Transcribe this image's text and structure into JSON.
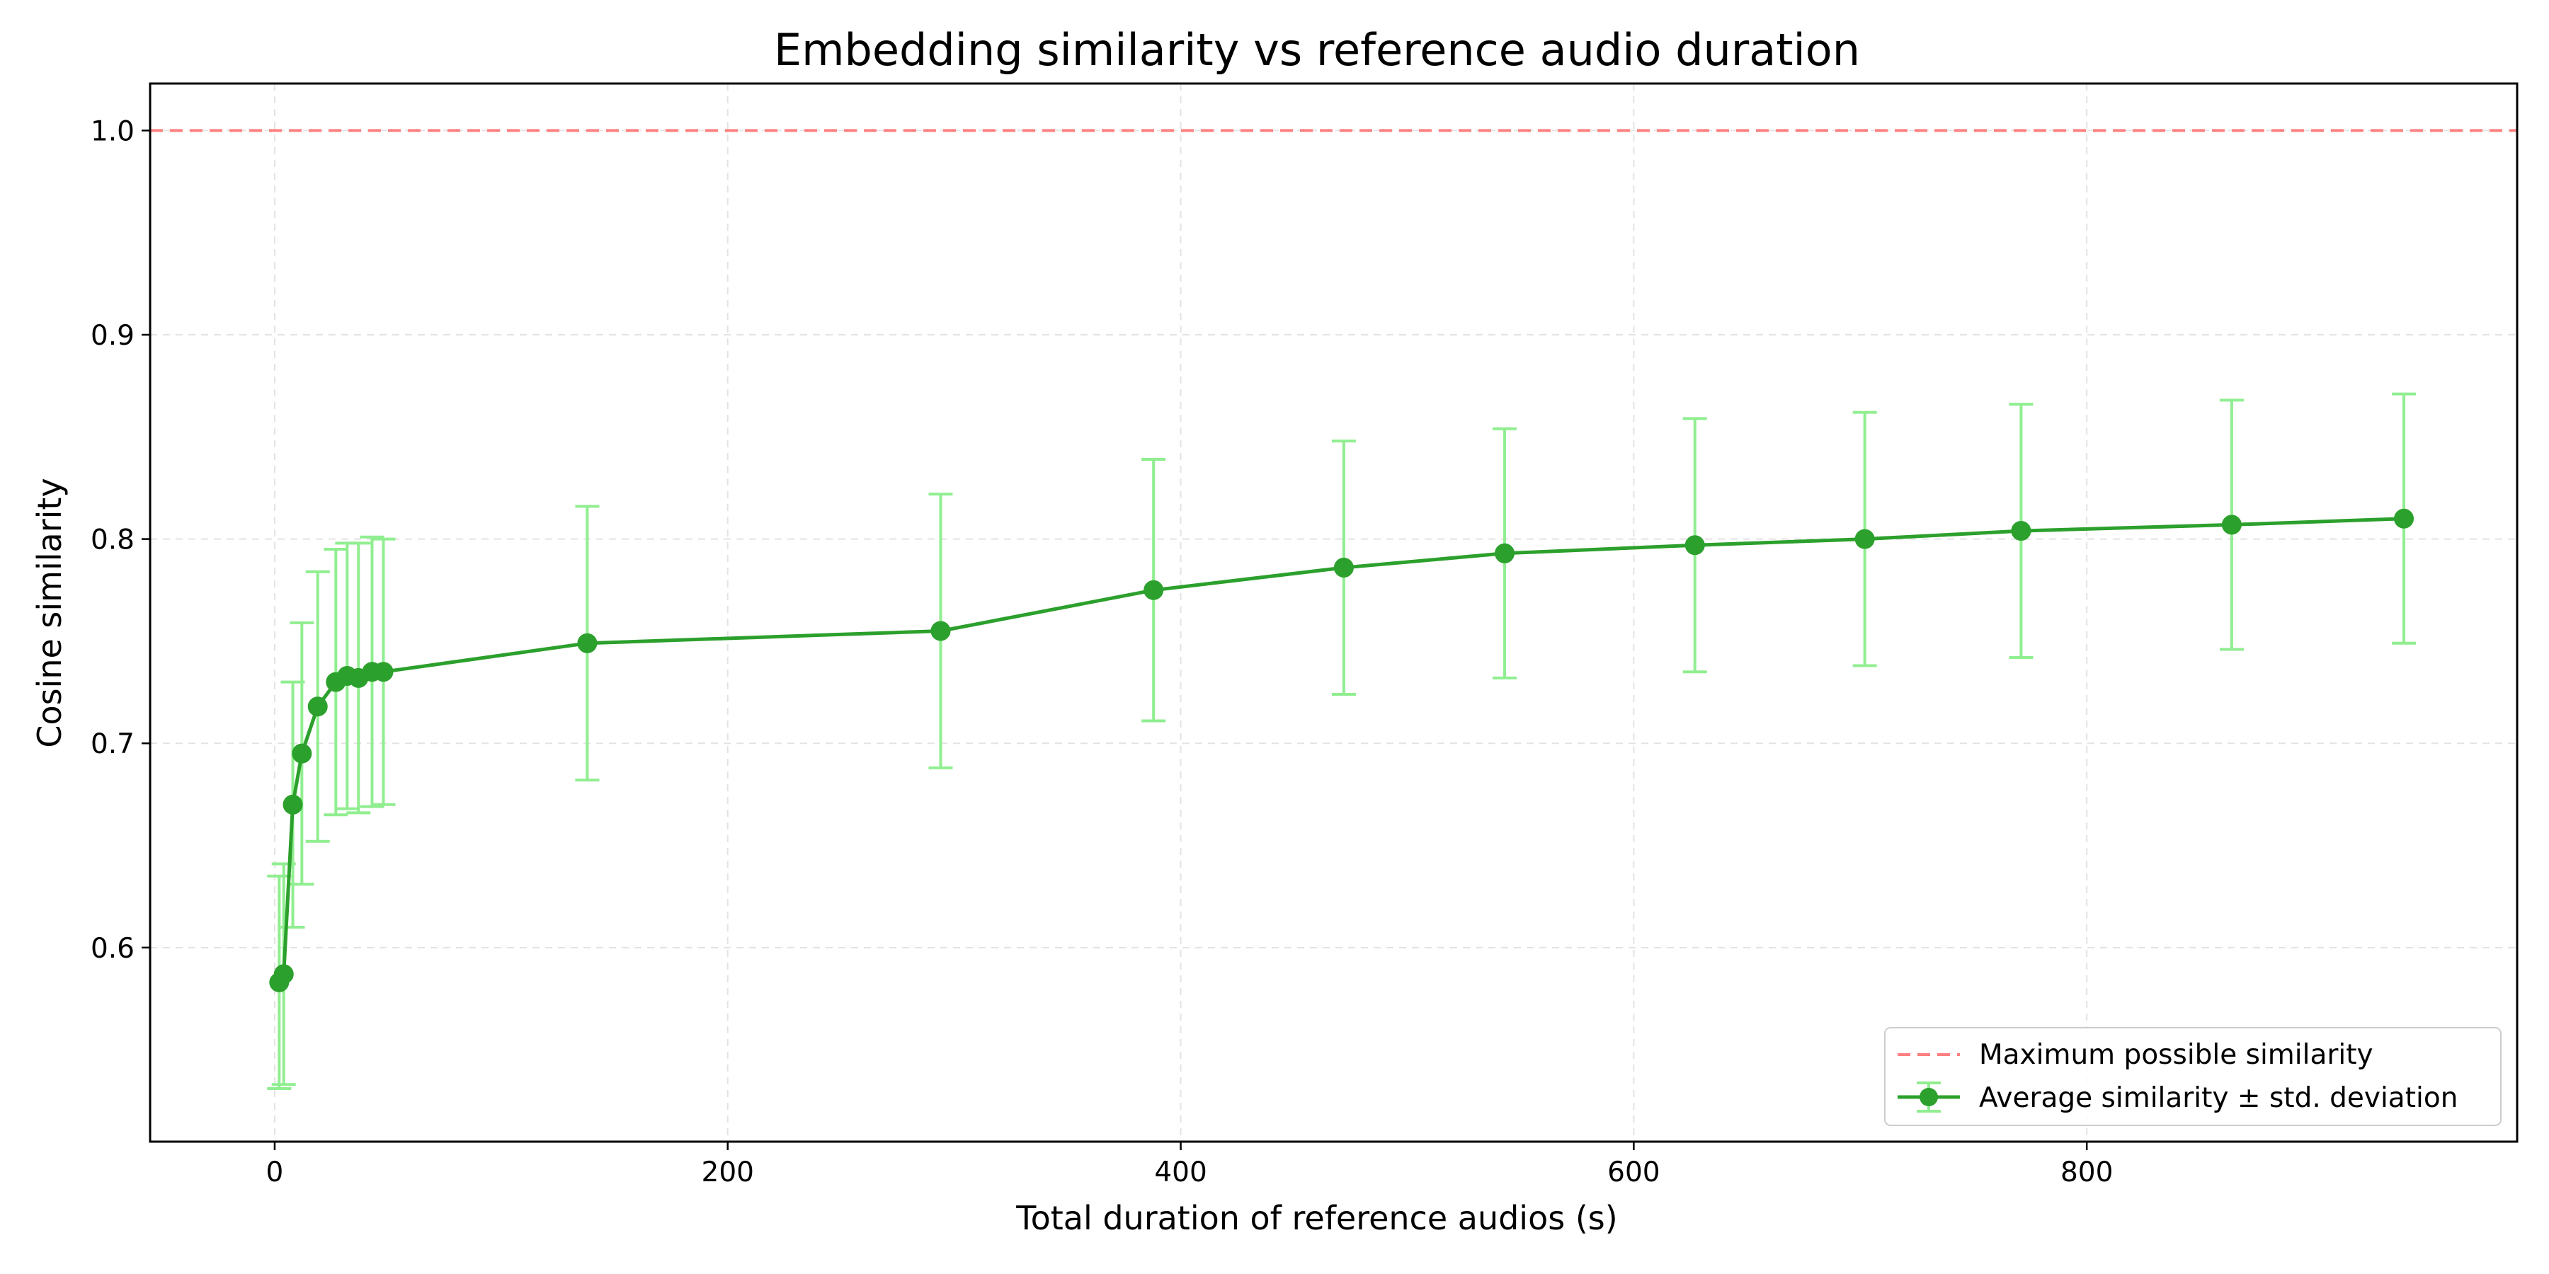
{
  "chart_data": {
    "type": "line",
    "title": "Embedding similarity vs reference audio duration",
    "xlabel": "Total duration of reference audios (s)",
    "ylabel": "Cosine similarity",
    "xlim": [
      -55,
      990
    ],
    "ylim": [
      0.505,
      1.023
    ],
    "xticks": [
      0,
      200,
      400,
      600,
      800
    ],
    "yticks": [
      0.6,
      0.7,
      0.8,
      0.9,
      1.0
    ],
    "xtick_labels": [
      "0",
      "200",
      "400",
      "600",
      "800"
    ],
    "ytick_labels": [
      "0.6",
      "0.7",
      "0.8",
      "0.9",
      "1.0"
    ],
    "grid": true,
    "legend_position": "lower-right",
    "reference_line": {
      "name": "Maximum possible similarity",
      "y": 1.0,
      "color": "#ff8080",
      "style": "dashed"
    },
    "series": [
      {
        "name": "Average similarity ± std. deviation",
        "line_color": "#2ca02c",
        "errorbar_color": "#90ee90",
        "x": [
          2,
          4,
          8,
          12,
          19,
          27,
          32,
          37,
          43,
          48,
          138,
          294,
          388,
          472,
          543,
          627,
          702,
          771,
          864,
          940
        ],
        "y": [
          0.583,
          0.587,
          0.67,
          0.695,
          0.718,
          0.73,
          0.733,
          0.732,
          0.735,
          0.735,
          0.749,
          0.755,
          0.775,
          0.786,
          0.793,
          0.797,
          0.8,
          0.804,
          0.807,
          0.81
        ],
        "std": [
          0.052,
          0.054,
          0.06,
          0.064,
          0.066,
          0.065,
          0.065,
          0.066,
          0.066,
          0.065,
          0.067,
          0.067,
          0.064,
          0.062,
          0.061,
          0.062,
          0.062,
          0.062,
          0.061,
          0.061
        ]
      }
    ]
  }
}
